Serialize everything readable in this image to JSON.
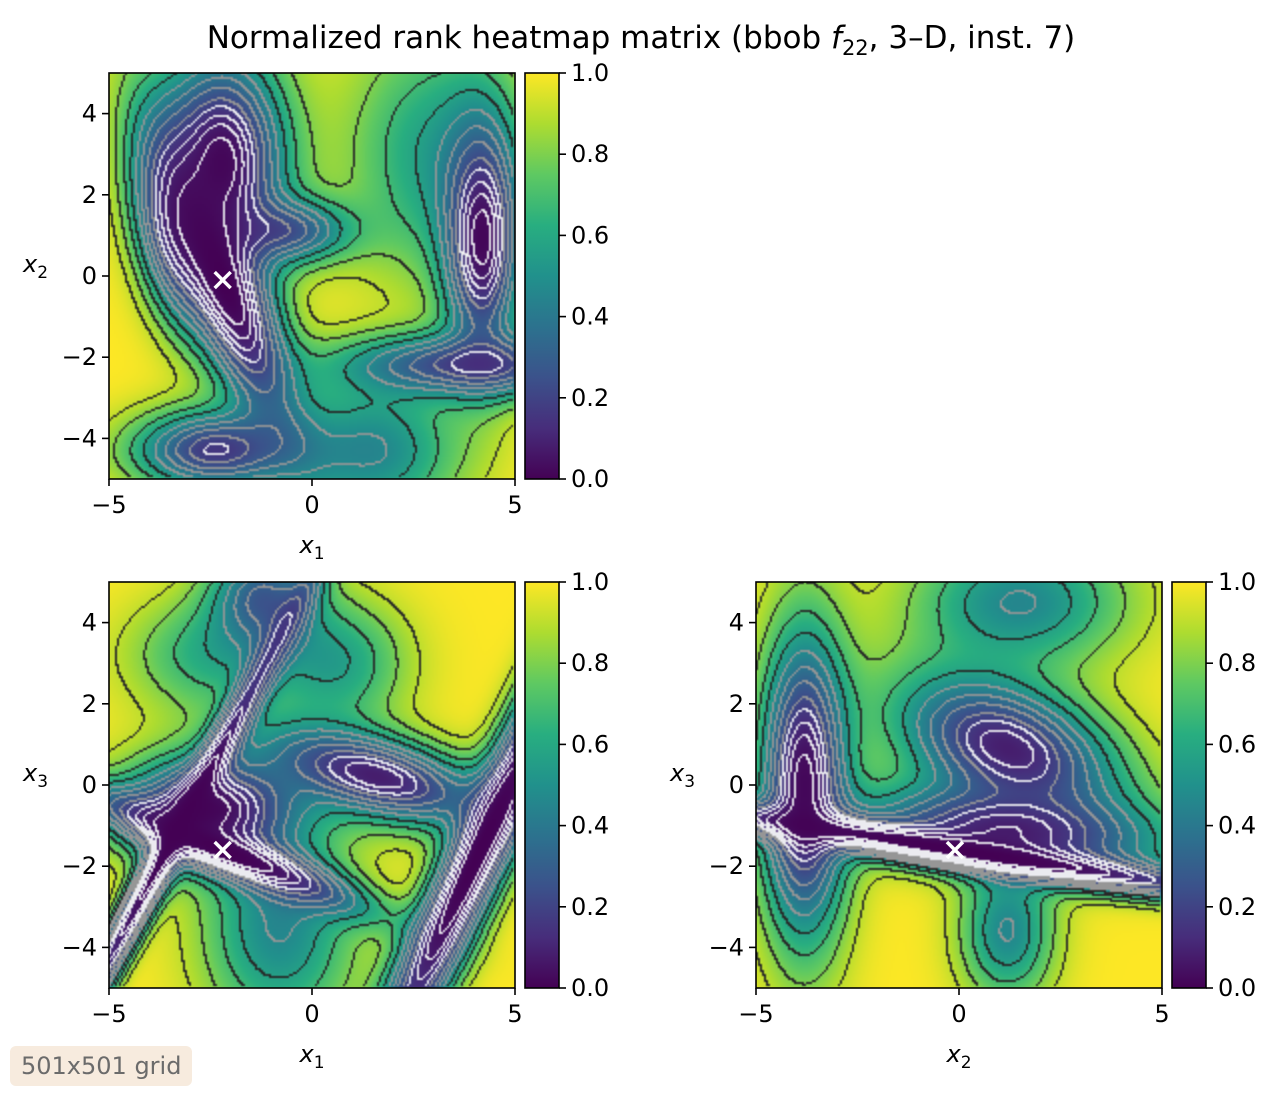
{
  "figure": {
    "title_prefix": "Normalized rank heatmap matrix (bbob ",
    "title_f": "f",
    "title_sub": "22",
    "title_suffix": ", 3–D, inst. 7)",
    "badge": "501x501 grid"
  },
  "chart_data": [
    {
      "type": "heatmap",
      "name": "x1-x2",
      "xlabel": "x",
      "xlabel_sub": "1",
      "ylabel": "x",
      "ylabel_sub": "2",
      "xlim": [
        -5,
        5
      ],
      "ylim": [
        -5,
        5
      ],
      "xticks": [
        -5,
        0,
        5
      ],
      "yticks": [
        -4,
        -2,
        0,
        2,
        4
      ],
      "colorbar": {
        "range": [
          0,
          1
        ],
        "ticks": [
          0.0,
          0.2,
          0.4,
          0.6,
          0.8,
          1.0
        ],
        "colormap": "viridis"
      },
      "marker": {
        "symbol": "x",
        "x": -2.2,
        "y": -0.1,
        "color": "#ffffff"
      },
      "basins": [
        {
          "x": -2.2,
          "y": 2.8,
          "sx": 1.1,
          "sy": 1.9,
          "angle": 0,
          "depth": 0.95
        },
        {
          "x": -2.2,
          "y": -0.1,
          "sx": 0.7,
          "sy": 2.7,
          "angle": 22,
          "depth": 1.0
        },
        {
          "x": -3.4,
          "y": 1.0,
          "sx": 0.6,
          "sy": 1.5,
          "angle": 10,
          "depth": 0.6
        },
        {
          "x": -0.6,
          "y": 1.1,
          "sx": 1.1,
          "sy": 0.55,
          "angle": 0,
          "depth": 0.6
        },
        {
          "x": 4.2,
          "y": 0.9,
          "sx": 0.65,
          "sy": 2.0,
          "angle": 0,
          "depth": 0.95
        },
        {
          "x": 4.0,
          "y": -2.2,
          "sx": 2.3,
          "sy": 0.55,
          "angle": 0,
          "depth": 0.7
        },
        {
          "x": -2.4,
          "y": -4.3,
          "sx": 1.4,
          "sy": 0.7,
          "angle": 0,
          "depth": 0.75
        },
        {
          "x": 1.5,
          "y": -4.3,
          "sx": 1.5,
          "sy": 1.2,
          "angle": 0,
          "depth": 0.45
        },
        {
          "x": 3.0,
          "y": 3.0,
          "sx": 1.5,
          "sy": 2.2,
          "angle": 0,
          "depth": 0.35
        }
      ]
    },
    {
      "type": "heatmap",
      "name": "x1-x3",
      "xlabel": "x",
      "xlabel_sub": "1",
      "ylabel": "x",
      "ylabel_sub": "3",
      "xlim": [
        -5,
        5
      ],
      "ylim": [
        -5,
        5
      ],
      "xticks": [
        -5,
        0,
        5
      ],
      "yticks": [
        -4,
        -2,
        0,
        2,
        4
      ],
      "colorbar": {
        "range": [
          0,
          1
        ],
        "ticks": [
          0.0,
          0.2,
          0.4,
          0.6,
          0.8,
          1.0
        ],
        "colormap": "viridis"
      },
      "marker": {
        "symbol": "x",
        "x": -2.2,
        "y": -1.6,
        "color": "#ffffff"
      },
      "basins": [
        {
          "x": -2.2,
          "y": -1.6,
          "sx": 2.4,
          "sy": 0.4,
          "angle": -22,
          "depth": 1.0
        },
        {
          "x": -2.5,
          "y": -0.6,
          "sx": 1.5,
          "sy": 0.9,
          "angle": 0,
          "depth": 0.95
        },
        {
          "x": -3.5,
          "y": -1.5,
          "sx": 0.3,
          "sy": 5.5,
          "angle": -28,
          "depth": 0.95
        },
        {
          "x": 1.6,
          "y": 0.2,
          "sx": 2.0,
          "sy": 0.7,
          "angle": -15,
          "depth": 0.85
        },
        {
          "x": 4.2,
          "y": -1.5,
          "sx": 0.55,
          "sy": 5.5,
          "angle": -25,
          "depth": 1.0
        },
        {
          "x": -1.2,
          "y": 4.6,
          "sx": 0.9,
          "sy": 0.9,
          "angle": 0,
          "depth": 0.6
        },
        {
          "x": -0.8,
          "y": -3.5,
          "sx": 1.3,
          "sy": 1.8,
          "angle": 0,
          "depth": 0.45
        },
        {
          "x": 0.6,
          "y": 3.0,
          "sx": 1.2,
          "sy": 1.1,
          "angle": 0,
          "depth": 0.35
        },
        {
          "x": -2.5,
          "y": 3.2,
          "sx": 1.4,
          "sy": 1.0,
          "angle": 0,
          "depth": 0.3
        }
      ]
    },
    {
      "type": "heatmap",
      "name": "x2-x3",
      "xlabel": "x",
      "xlabel_sub": "2",
      "ylabel": "x",
      "ylabel_sub": "3",
      "xlim": [
        -5,
        5
      ],
      "ylim": [
        -5,
        5
      ],
      "xticks": [
        -5,
        0,
        5
      ],
      "yticks": [
        -4,
        -2,
        0,
        2,
        4
      ],
      "colorbar": {
        "range": [
          0,
          1
        ],
        "ticks": [
          0.0,
          0.2,
          0.4,
          0.6,
          0.8,
          1.0
        ],
        "colormap": "viridis"
      },
      "marker": {
        "symbol": "x",
        "x": -0.1,
        "y": -1.6,
        "color": "#ffffff"
      },
      "basins": [
        {
          "x": -0.1,
          "y": -1.6,
          "sx": 6.0,
          "sy": 0.32,
          "angle": -9,
          "depth": 1.0
        },
        {
          "x": -3.8,
          "y": 0.0,
          "sx": 0.75,
          "sy": 2.6,
          "angle": 0,
          "depth": 0.95
        },
        {
          "x": 1.2,
          "y": 0.9,
          "sx": 2.0,
          "sy": 1.1,
          "angle": -22,
          "depth": 0.85
        },
        {
          "x": 1.2,
          "y": -1.1,
          "sx": 2.6,
          "sy": 0.7,
          "angle": -5,
          "depth": 0.8
        },
        {
          "x": 1.5,
          "y": 4.5,
          "sx": 1.8,
          "sy": 1.1,
          "angle": 0,
          "depth": 0.45
        },
        {
          "x": 1.2,
          "y": -3.6,
          "sx": 0.8,
          "sy": 1.2,
          "angle": 0,
          "depth": 0.45
        }
      ]
    }
  ]
}
